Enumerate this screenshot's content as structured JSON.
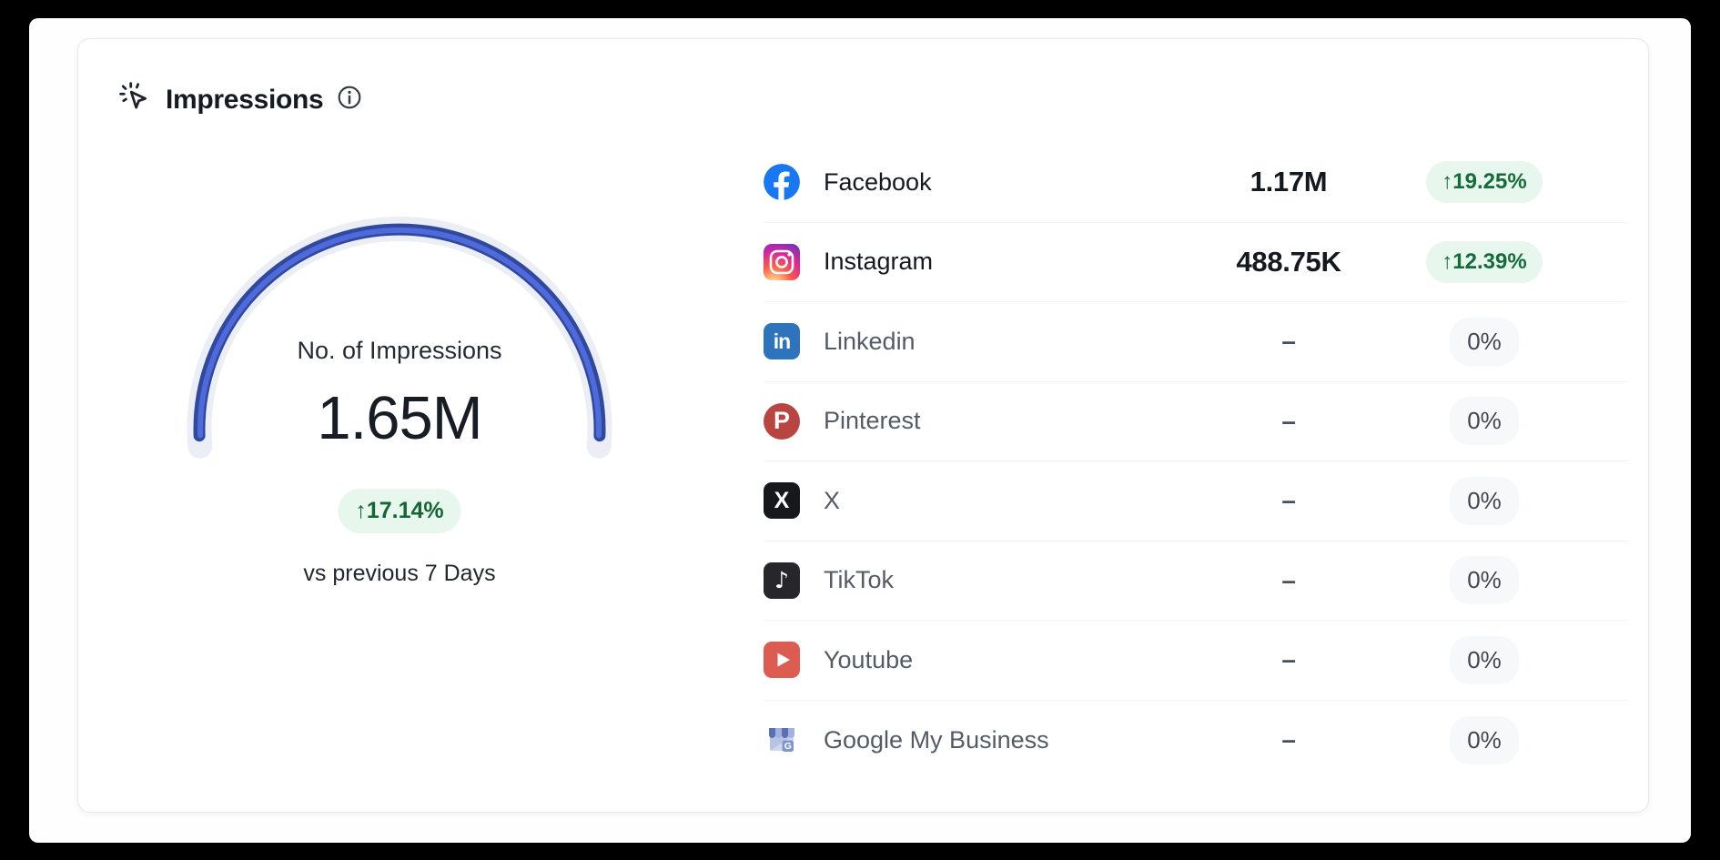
{
  "card": {
    "title": "Impressions",
    "title_icon": "click-sparkle-icon",
    "info_icon": "info-icon"
  },
  "gauge": {
    "label": "No. of Impressions",
    "value": "1.65M",
    "change": "↑17.14%",
    "comparison": "vs previous 7 Days",
    "arc_color": "#3a55c4",
    "track_color": "#eceef5"
  },
  "platforms": [
    {
      "name": "Facebook",
      "icon": "facebook-icon",
      "value": "1.17M",
      "change": "↑19.25%",
      "has_value": true
    },
    {
      "name": "Instagram",
      "icon": "instagram-icon",
      "value": "488.75K",
      "change": "↑12.39%",
      "has_value": true
    },
    {
      "name": "Linkedin",
      "icon": "linkedin-icon",
      "value": "–",
      "change": "0%",
      "has_value": false
    },
    {
      "name": "Pinterest",
      "icon": "pinterest-icon",
      "value": "–",
      "change": "0%",
      "has_value": false
    },
    {
      "name": "X",
      "icon": "x-icon",
      "value": "–",
      "change": "0%",
      "has_value": false
    },
    {
      "name": "TikTok",
      "icon": "tiktok-icon",
      "value": "–",
      "change": "0%",
      "has_value": false
    },
    {
      "name": "Youtube",
      "icon": "youtube-icon",
      "value": "–",
      "change": "0%",
      "has_value": false
    },
    {
      "name": "Google My Business",
      "icon": "gmb-icon",
      "value": "–",
      "change": "0%",
      "has_value": false
    }
  ],
  "colors": {
    "positive_text": "#166534",
    "positive_bg": "#e8f7ee",
    "gauge_blue": "#3a55c4",
    "facebook_blue": "#1877f2"
  },
  "chart_data": {
    "type": "gauge",
    "title": "No. of Impressions",
    "value": 1650000,
    "value_label": "1.65M",
    "change_percent": 17.14,
    "comparison": "vs previous 7 Days",
    "breakdown": [
      {
        "platform": "Facebook",
        "impressions": 1170000,
        "impressions_label": "1.17M",
        "change_percent": 19.25
      },
      {
        "platform": "Instagram",
        "impressions": 488750,
        "impressions_label": "488.75K",
        "change_percent": 12.39
      },
      {
        "platform": "Linkedin",
        "impressions": null,
        "impressions_label": "–",
        "change_percent": 0
      },
      {
        "platform": "Pinterest",
        "impressions": null,
        "impressions_label": "–",
        "change_percent": 0
      },
      {
        "platform": "X",
        "impressions": null,
        "impressions_label": "–",
        "change_percent": 0
      },
      {
        "platform": "TikTok",
        "impressions": null,
        "impressions_label": "–",
        "change_percent": 0
      },
      {
        "platform": "Youtube",
        "impressions": null,
        "impressions_label": "–",
        "change_percent": 0
      },
      {
        "platform": "Google My Business",
        "impressions": null,
        "impressions_label": "–",
        "change_percent": 0
      }
    ]
  }
}
